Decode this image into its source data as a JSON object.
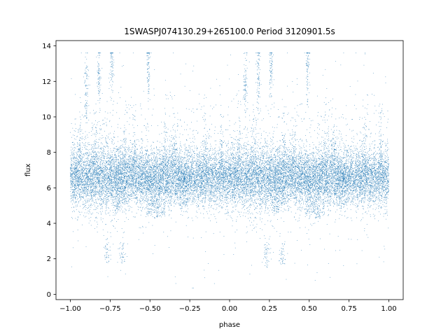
{
  "chart_data": {
    "type": "scatter",
    "title": "1SWASPJ074130.29+265100.0 Period 3120901.5s",
    "xlabel": "phase",
    "ylabel": "flux",
    "xlim": [
      -1.09,
      1.09
    ],
    "ylim": [
      -0.3,
      14.3
    ],
    "x_ticks": [
      -1.0,
      -0.75,
      -0.5,
      -0.25,
      0.0,
      0.25,
      0.5,
      0.75,
      1.0
    ],
    "x_tick_labels": [
      "−1.00",
      "−0.75",
      "−0.50",
      "−0.25",
      "0.00",
      "0.25",
      "0.50",
      "0.75",
      "1.00"
    ],
    "y_ticks": [
      0,
      2,
      4,
      6,
      8,
      10,
      12,
      14
    ],
    "y_tick_labels": [
      "0",
      "2",
      "4",
      "6",
      "8",
      "10",
      "12",
      "14"
    ],
    "grid": false,
    "series": [
      {
        "color": "#1f77b4",
        "marker_size": 0.7,
        "x_range": [
          -1.0,
          1.0
        ],
        "periodic_in_phase": 1.0,
        "baseline_flux": 6.6,
        "core_flux_range": [
          5.5,
          7.5
        ],
        "max_flux": 13.6,
        "min_flux": 0.35,
        "clump_phases_high": [
          -0.9,
          -0.82,
          -0.74,
          -0.51,
          0.1,
          0.18,
          0.26,
          0.49
        ],
        "clump_flux_high": [
          11.5,
          12.2,
          13.0,
          12.8,
          11.5,
          12.2,
          13.0,
          12.8
        ],
        "clump_phases_low": [
          -0.77,
          -0.67,
          0.23,
          0.33
        ],
        "clump_flux_low": [
          2.3,
          2.2,
          2.3,
          2.2
        ],
        "dip_phases": [
          -0.7,
          -0.5,
          -0.45,
          -0.3,
          0.3,
          0.5,
          0.55,
          0.7
        ],
        "dip_flux": [
          4.6,
          4.5,
          4.3,
          5.0,
          4.6,
          4.5,
          4.3,
          5.0
        ]
      }
    ]
  }
}
